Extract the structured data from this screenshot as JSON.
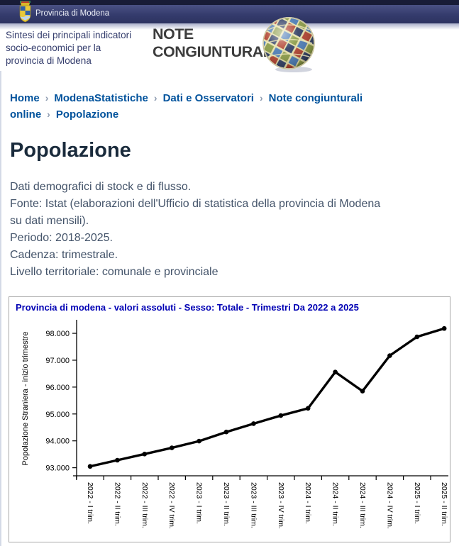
{
  "header": {
    "brand": {
      "logo_icon": "provincia-di-modena-crest-icon",
      "label": "Provincia di Modena"
    },
    "tagline": "Sintesi dei principali indicatori\nsocio-economici per la\nprovincia di Modena",
    "title_line1": "NOTE",
    "title_line2": "CONGIUNTURALI",
    "globe_icon": "photo-mosaic-globe-icon"
  },
  "breadcrumb": {
    "separator": "›",
    "items": [
      {
        "label": "Home",
        "current": false
      },
      {
        "label": "ModenaStatistiche",
        "current": false
      },
      {
        "label": "Dati e Osservatori",
        "current": false
      },
      {
        "label": "Note congiunturali online",
        "current": false
      },
      {
        "label": "Popolazione",
        "current": true
      }
    ]
  },
  "page": {
    "title": "Popolazione",
    "description": "Dati demografici di stock e di flusso.\nFonte: Istat (elaborazioni dell'Ufficio di statistica della provincia di Modena\nsu dati mensili).\nPeriodo: 2018-2025.\nCadenza: trimestrale.\nLivello territoriale: comunale e provinciale"
  },
  "theme": {
    "breadcrumb_link": "#00529c",
    "heading_color": "#1a2b3c",
    "body_text_color": "#44546a",
    "header_band_navy": "#343b6c",
    "chart_title_color": "#0000b4"
  },
  "chart_data": {
    "type": "line",
    "title": "Provincia di modena - valori assoluti - Sesso: Totale - Trimestri Da 2022 a 2025",
    "xlabel": "",
    "ylabel": "Popolazione Straniera - inizio trimestre",
    "categories": [
      "2022 - I trim.",
      "2022 - II trim.",
      "2022 - III trim.",
      "2022 - IV trim.",
      "2023 - I trim.",
      "2023 - II trim.",
      "2023 - III trim.",
      "2023 - IV trim.",
      "2024 - I trim.",
      "2024 - II trim.",
      "2024 - III trim.",
      "2024 - IV trim.",
      "2025 - I trim.",
      "2025 - II trim."
    ],
    "values": [
      93050,
      93280,
      93510,
      93740,
      93990,
      94330,
      94640,
      94940,
      95210,
      96560,
      95850,
      97170,
      97870,
      98180
    ],
    "ylim": [
      92700,
      98450
    ],
    "yticks": [
      93000,
      94000,
      95000,
      96000,
      97000,
      98000
    ],
    "ytick_labels": [
      "93.000",
      "94.000",
      "95.000",
      "96.000",
      "97.000",
      "98.000"
    ],
    "grid": false,
    "legend": "none",
    "line_color": "#000000",
    "marker": "circle"
  }
}
